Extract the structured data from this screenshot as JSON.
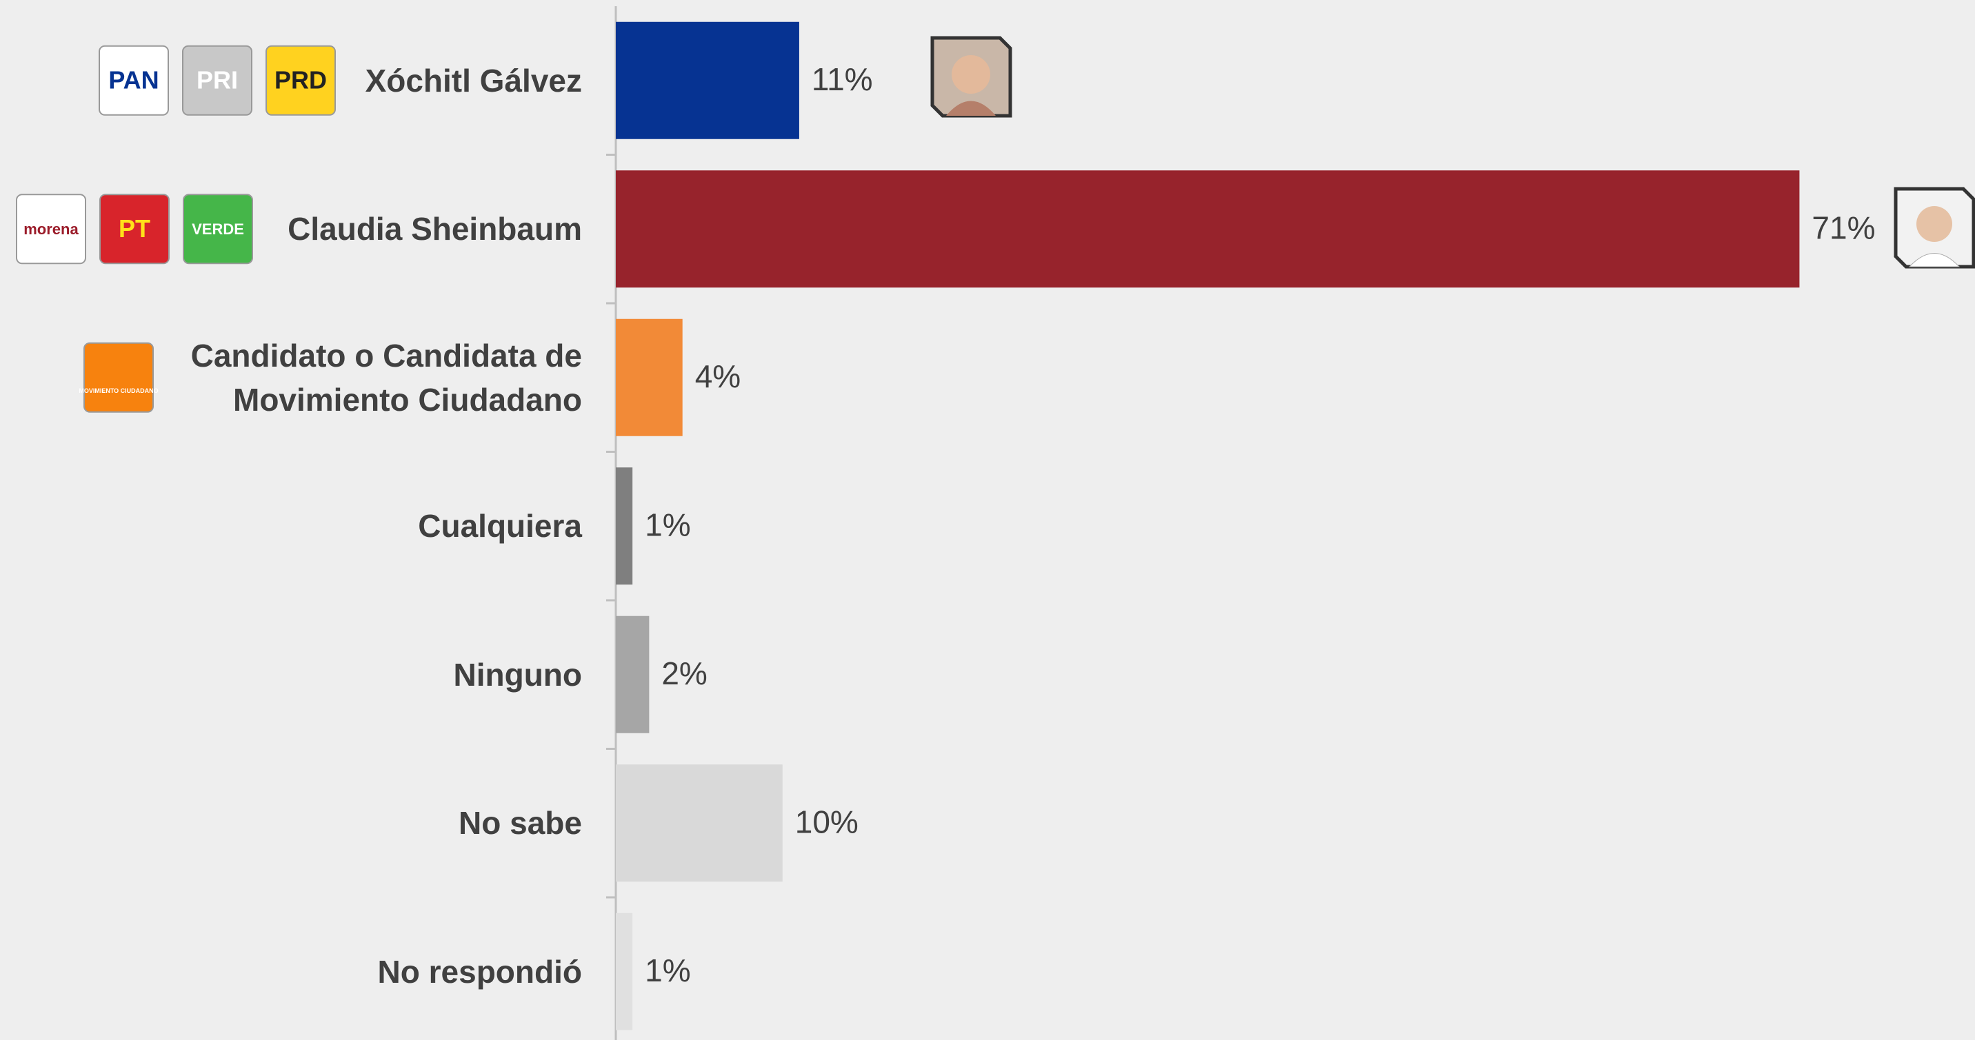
{
  "chart_data": {
    "type": "hbar",
    "categories": [
      "Xóchitl Gálvez",
      "Claudia Sheinbaum",
      "Candidato o Candidata de\nMovimiento Ciudadano",
      "Cualquiera",
      "Ninguno",
      "No sabe",
      "No respondió"
    ],
    "values": [
      11,
      71,
      4,
      1,
      2,
      10,
      1
    ],
    "value_labels": [
      "11%",
      "71%",
      "4%",
      "1%",
      "2%",
      "10%",
      "1%"
    ],
    "colors": [
      "#063392",
      "#97232c",
      "#f28a37",
      "#7f7f7f",
      "#a6a6a6",
      "#d9d9d9",
      "#e0e0e0"
    ],
    "xlim": [
      0,
      80
    ],
    "category_logos": [
      [
        {
          "text": "PAN",
          "bg": "#ffffff",
          "fg": "#063392"
        },
        {
          "text": "PRI",
          "bg": "#c8c8c8",
          "fg": "#ffffff"
        },
        {
          "text": "PRD",
          "bg": "#ffd21f",
          "fg": "#222222"
        }
      ],
      [
        {
          "text": "morena",
          "bg": "#ffffff",
          "fg": "#9b1c2a"
        },
        {
          "text": "PT",
          "bg": "#d8242b",
          "fg": "#ffe11a"
        },
        {
          "text": "VERDE",
          "bg": "#45b649",
          "fg": "#ffffff"
        }
      ],
      [
        {
          "text": "MOVIMIENTO CIUDADANO",
          "bg": "#f7820e",
          "fg": "#ffffff"
        }
      ],
      [],
      [],
      [],
      []
    ]
  }
}
